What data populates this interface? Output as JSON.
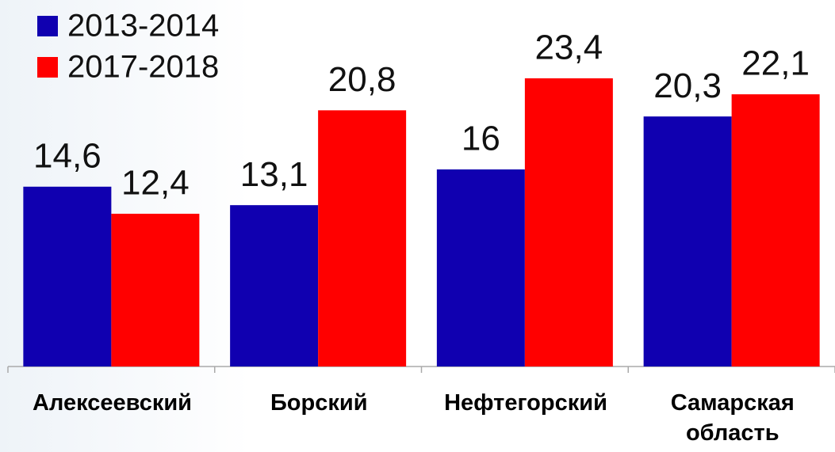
{
  "chart_data": {
    "type": "bar",
    "categories": [
      "Алексеевский",
      "Борский",
      "Нефтегорский",
      "Самарская область"
    ],
    "series": [
      {
        "name": "2013-2014",
        "color": "#1000b0",
        "values": [
          14.6,
          13.1,
          16,
          20.3
        ],
        "value_labels": [
          "14,6",
          "13,1",
          "16",
          "20,3"
        ]
      },
      {
        "name": "2017-2018",
        "color": "#ff0000",
        "values": [
          12.4,
          20.8,
          23.4,
          22.1
        ],
        "value_labels": [
          "12,4",
          "20,8",
          "23,4",
          "22,1"
        ]
      }
    ],
    "ylim": [
      0,
      25
    ],
    "legend": "top-left"
  }
}
